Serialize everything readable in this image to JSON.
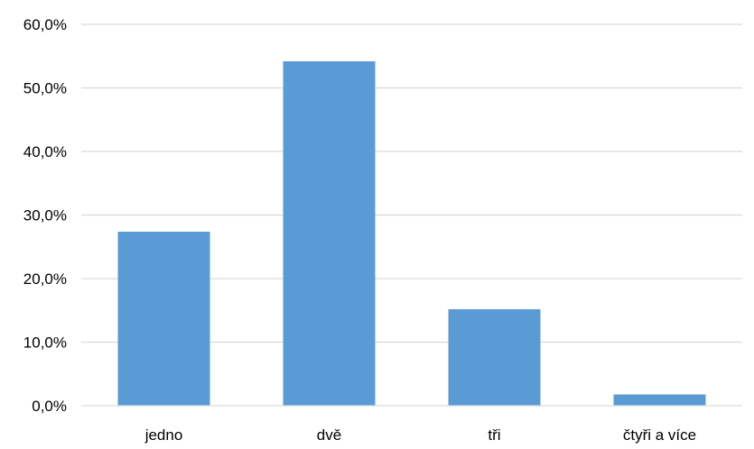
{
  "chart_data": {
    "type": "bar",
    "categories": [
      "jedno",
      "dvě",
      "tři",
      "čtyři a více"
    ],
    "values": [
      27.4,
      54.2,
      15.2,
      1.8
    ],
    "ylim": [
      0,
      60
    ],
    "ytick_values": [
      0,
      10,
      20,
      30,
      40,
      50,
      60
    ],
    "ytick_labels": [
      "0,0%",
      "10,0%",
      "20,0%",
      "30,0%",
      "40,0%",
      "50,0%",
      "60,0%"
    ],
    "grid": true,
    "legend": "none",
    "bar_color": "#5b9bd5",
    "title": "",
    "xlabel": "",
    "ylabel": ""
  }
}
